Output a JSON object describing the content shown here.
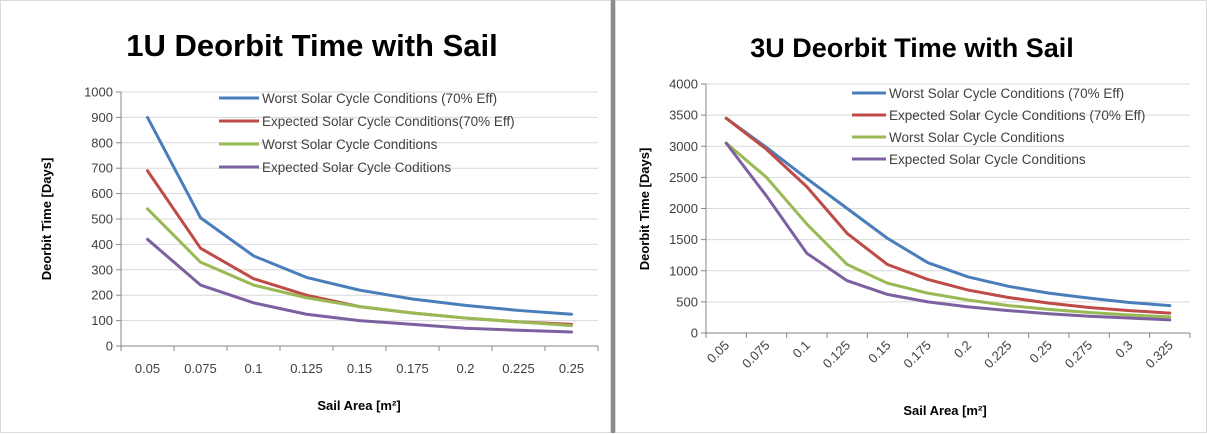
{
  "chart_data": [
    {
      "type": "line",
      "title": "1U Deorbit Time with Sail",
      "xlabel": "Sail Area [m²]",
      "ylabel": "Deorbit Time [Days]",
      "categories": [
        "0.05",
        "0.075",
        "0.1",
        "0.125",
        "0.15",
        "0.175",
        "0.2",
        "0.225",
        "0.25"
      ],
      "ylim": [
        0,
        1000
      ],
      "yticks": [
        "0",
        "100",
        "200",
        "300",
        "400",
        "500",
        "600",
        "700",
        "800",
        "900",
        "1000"
      ],
      "grid": true,
      "legend_position": "top-right",
      "series": [
        {
          "name": "Worst Solar Cycle Conditions (70% Eff)",
          "color": "#4a7ebb",
          "values": [
            900,
            505,
            355,
            270,
            220,
            185,
            160,
            140,
            125
          ]
        },
        {
          "name": "Expected Solar Cycle Conditions(70% Eff)",
          "color": "#be4b48",
          "values": [
            690,
            385,
            265,
            200,
            155,
            130,
            110,
            95,
            85
          ]
        },
        {
          "name": "Worst Solar Cycle Conditions",
          "color": "#98b954",
          "values": [
            540,
            330,
            240,
            190,
            155,
            130,
            110,
            95,
            80
          ]
        },
        {
          "name": "Expected Solar Cycle Coditions",
          "color": "#7d60a0",
          "values": [
            420,
            240,
            170,
            125,
            100,
            85,
            70,
            62,
            55
          ]
        }
      ]
    },
    {
      "type": "line",
      "title": "3U Deorbit Time with Sail",
      "xlabel": "Sail Area [m²]",
      "ylabel": "Deorbit Time [Days]",
      "categories": [
        "0.05",
        "0.075",
        "0.1",
        "0.125",
        "0.15",
        "0.175",
        "0.2",
        "0.225",
        "0.25",
        "0.275",
        "0.3",
        "0.325"
      ],
      "ylim": [
        0,
        4000
      ],
      "yticks": [
        "0",
        "500",
        "1000",
        "1500",
        "2000",
        "2500",
        "3000",
        "3500",
        "4000"
      ],
      "grid": true,
      "legend_position": "top-right",
      "series": [
        {
          "name": "Worst Solar Cycle Conditions (70% Eff)",
          "color": "#4a7ebb",
          "values": [
            3450,
            2980,
            2480,
            2000,
            1520,
            1130,
            900,
            750,
            640,
            560,
            490,
            440
          ]
        },
        {
          "name": "Expected Solar Cycle Conditions (70% Eff)",
          "color": "#be4b48",
          "values": [
            3450,
            2950,
            2350,
            1600,
            1100,
            860,
            690,
            570,
            480,
            410,
            360,
            320
          ]
        },
        {
          "name": "Worst Solar Cycle Conditions",
          "color": "#98b954",
          "values": [
            3050,
            2500,
            1750,
            1100,
            800,
            640,
            530,
            440,
            380,
            330,
            290,
            260
          ]
        },
        {
          "name": "Expected Solar Cycle Conditions",
          "color": "#7d60a0",
          "values": [
            3050,
            2200,
            1280,
            840,
            620,
            500,
            420,
            360,
            310,
            270,
            240,
            210
          ]
        }
      ]
    }
  ]
}
